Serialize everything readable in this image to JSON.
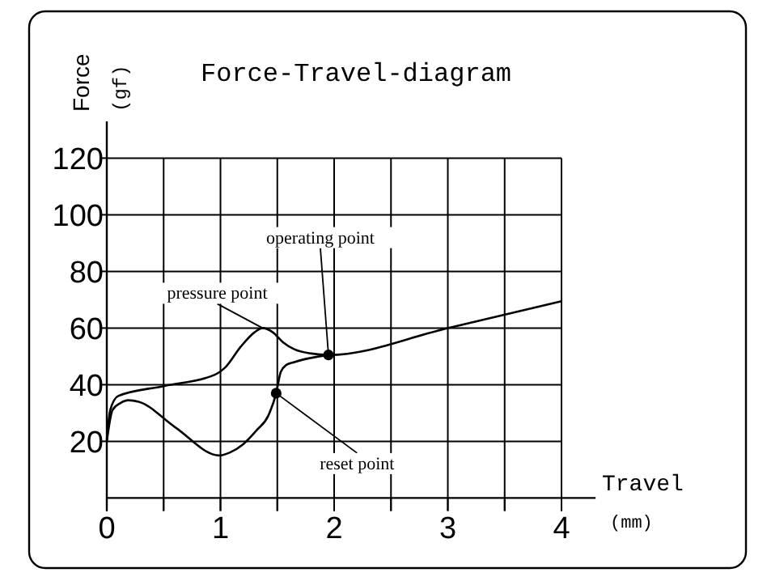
{
  "chart_data": {
    "type": "line",
    "title": "Force-Travel-diagram",
    "xlabel": "Travel (mm)",
    "ylabel": "Force (gf)",
    "series": [
      {
        "color": "#000000",
        "x": [
          0,
          0.03,
          0.1,
          0.5,
          0.95,
          1.04,
          1.18,
          1.3,
          1.37,
          1.46,
          1.55,
          1.65,
          1.8,
          1.95,
          3,
          4
        ],
        "values": [
          20.5,
          31,
          36,
          39.5,
          43.5,
          46,
          53.5,
          58.5,
          60,
          58.5,
          55,
          52.5,
          51,
          50.5,
          60,
          69.5
        ]
      },
      {
        "color": "#000000",
        "x": [
          0,
          0.05,
          0.12,
          0.19,
          0.28,
          0.6,
          0.99,
          1.08,
          1.2,
          1.32,
          1.42,
          1.49,
          1.53,
          1.58,
          1.65,
          1.95
        ],
        "values": [
          20,
          31,
          33.5,
          34.5,
          34,
          25,
          15,
          16,
          19,
          24,
          29,
          37,
          44.5,
          47,
          48,
          50.5
        ]
      },
      {
        "type": "scatter",
        "marker": "circle",
        "color": "#000000",
        "x": [
          1.95,
          1.49
        ],
        "values": [
          50.5,
          37
        ]
      }
    ],
    "annotations": [
      {
        "text": "operating point",
        "x": 1.95,
        "y": 50.5
      },
      {
        "text": "pressure point",
        "x": 1.37,
        "y": 60
      },
      {
        "text": "reset point",
        "x": 1.49,
        "y": 37
      }
    ],
    "xlim": [
      0,
      4.3
    ],
    "ylim": [
      0,
      133
    ],
    "xticks": [
      0,
      {
        "value": 0.5,
        "label": null
      },
      1,
      {
        "value": 1.5,
        "label": null
      },
      2,
      {
        "value": 2.5,
        "label": null
      },
      3,
      {
        "value": 3.5,
        "label": null
      },
      4
    ],
    "yticks": [
      20,
      40,
      60,
      80,
      100,
      120
    ],
    "grid": true,
    "marker": "none",
    "line_style": "solid"
  }
}
